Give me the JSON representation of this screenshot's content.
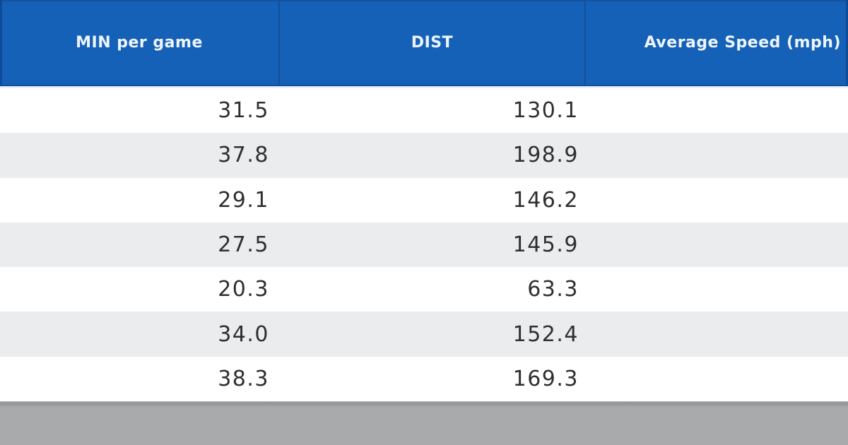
{
  "table": {
    "columns": [
      {
        "key": "min_per_game",
        "label": "MIN per game"
      },
      {
        "key": "dist",
        "label": "DIST"
      },
      {
        "key": "avg_speed",
        "label": "Average Speed (mph)"
      }
    ],
    "rows": [
      {
        "min_per_game": "31.5",
        "dist": "130.1",
        "avg_speed": ""
      },
      {
        "min_per_game": "37.8",
        "dist": "198.9",
        "avg_speed": ""
      },
      {
        "min_per_game": "29.1",
        "dist": "146.2",
        "avg_speed": ""
      },
      {
        "min_per_game": "27.5",
        "dist": "145.9",
        "avg_speed": ""
      },
      {
        "min_per_game": "20.3",
        "dist": "63.3",
        "avg_speed": ""
      },
      {
        "min_per_game": "34.0",
        "dist": "152.4",
        "avg_speed": ""
      },
      {
        "min_per_game": "38.3",
        "dist": "169.3",
        "avg_speed": ""
      }
    ]
  },
  "colors": {
    "header_bg": "#1661b8",
    "header_edge": "#0e4c97",
    "header_edge_top": "#14549f",
    "header_sep": "#114f9c",
    "header_text": "#eef5fd",
    "underline_light": "#dce8f6",
    "row_bg": "#ffffff",
    "row_alt_bg": "#ebecee",
    "data_text": "#2f2f2f",
    "footer_bg": "#a9aaab",
    "footer_dark": "#919293"
  },
  "chart_data": {
    "type": "table",
    "title": "",
    "columns": [
      "MIN per game",
      "DIST",
      "Average Speed (mph)"
    ],
    "rows": [
      [
        31.5,
        130.1,
        null
      ],
      [
        37.8,
        198.9,
        null
      ],
      [
        29.1,
        146.2,
        null
      ],
      [
        27.5,
        145.9,
        null
      ],
      [
        20.3,
        63.3,
        null
      ],
      [
        34.0,
        152.4,
        null
      ],
      [
        38.3,
        169.3,
        null
      ]
    ],
    "layout_hints": {
      "header_style": "blue-bar",
      "row_striping": "white-gray-alternating",
      "value_alignment": "right",
      "avg_speed_values_visible": false
    }
  }
}
